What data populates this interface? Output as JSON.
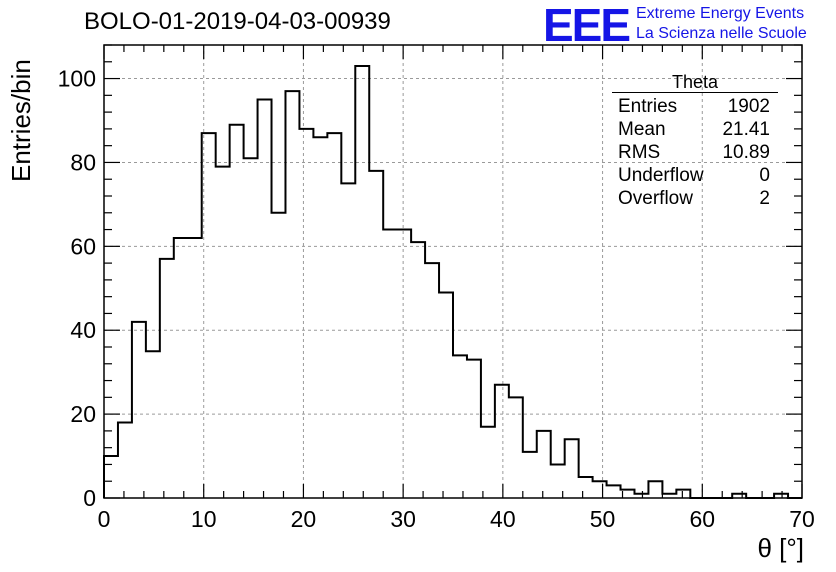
{
  "title": "BOLO-01-2019-04-03-00939",
  "logo": {
    "mark": "EEE",
    "line1": "Extreme Energy Events",
    "line2": "La Scienza nelle Scuole",
    "color": "#1515e6"
  },
  "stats_box": {
    "title": "Theta",
    "rows": [
      {
        "label": "Entries",
        "value": "1902"
      },
      {
        "label": "Mean",
        "value": "21.41"
      },
      {
        "label": "RMS",
        "value": "10.89"
      },
      {
        "label": "Underflow",
        "value": "0"
      },
      {
        "label": "Overflow",
        "value": "2"
      }
    ]
  },
  "chart_data": {
    "type": "bar",
    "style": "step-histogram",
    "title": "BOLO-01-2019-04-03-00939",
    "xlabel": "θ [°]",
    "ylabel": "Entries/bin",
    "xlim": [
      0,
      70
    ],
    "ylim": [
      0,
      108
    ],
    "bin_width": 1.4,
    "bin_edges_start": 0,
    "x_ticks": [
      0,
      10,
      20,
      30,
      40,
      50,
      60,
      70
    ],
    "y_ticks": [
      0,
      20,
      40,
      60,
      80,
      100
    ],
    "grid": true,
    "values": [
      10,
      18,
      42,
      35,
      57,
      62,
      62,
      87,
      79,
      89,
      81,
      95,
      68,
      97,
      88,
      86,
      87,
      75,
      103,
      78,
      64,
      64,
      61,
      56,
      49,
      34,
      33,
      17,
      27,
      24,
      11,
      16,
      8,
      14,
      5,
      4,
      3,
      2,
      1,
      4,
      1,
      2,
      0,
      0,
      0,
      1,
      0,
      0,
      1,
      0
    ]
  }
}
